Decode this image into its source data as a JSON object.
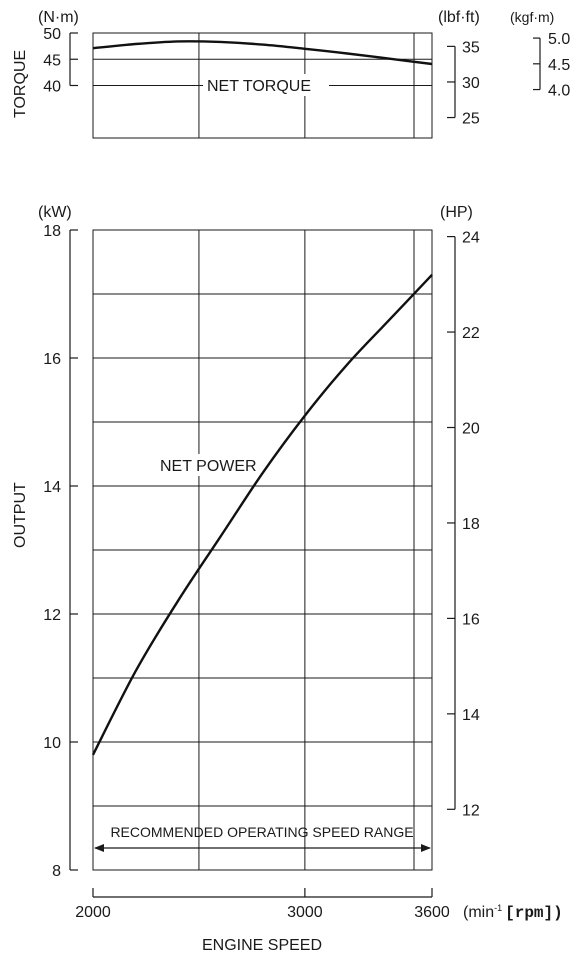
{
  "chart_data": [
    {
      "type": "line",
      "title": "",
      "xlabel": "",
      "ylabel": "TORQUE",
      "y_units": [
        "(N·m)",
        "(lbf·ft)",
        "(kgf·m)"
      ],
      "ylim": [
        40,
        50
      ],
      "y_ticks": [
        50,
        45,
        40
      ],
      "y_ticks_lbf_ft": [
        35,
        30,
        25
      ],
      "y_ticks_kgf_m": [
        "5.0",
        "4.5",
        "4.0"
      ],
      "grid": true,
      "series": [
        {
          "name": "NET TORQUE",
          "x": [
            2000,
            2200,
            2400,
            2600,
            2800,
            3000,
            3200,
            3400,
            3600
          ],
          "y": [
            47.1,
            47.9,
            48.4,
            48.3,
            47.8,
            47.0,
            46.1,
            45.1,
            44.1
          ]
        }
      ]
    },
    {
      "type": "line",
      "title": "",
      "xlabel": "ENGINE SPEED",
      "x_unit_prefix": "(min",
      "x_unit_sup": "-1",
      "x_unit_bracket": "[rpm])",
      "x_ticks": [
        2000,
        3000,
        3600
      ],
      "xlim": [
        2000,
        3600
      ],
      "ylabel": "OUTPUT",
      "y_units": [
        "(kW)",
        "(HP)"
      ],
      "ylim": [
        8,
        18
      ],
      "y_ticks": [
        18,
        16,
        14,
        12,
        10,
        8
      ],
      "y_ticks_hp": [
        24,
        22,
        20,
        18,
        16,
        14,
        12
      ],
      "grid": true,
      "series": [
        {
          "name": "NET POWER",
          "x": [
            2000,
            2200,
            2400,
            2600,
            2800,
            3000,
            3200,
            3400,
            3600
          ],
          "y": [
            9.8,
            11.1,
            12.2,
            13.2,
            14.2,
            15.1,
            15.9,
            16.6,
            17.3
          ]
        }
      ],
      "annotations": [
        "RECOMMENDED OPERATING SPEED RANGE"
      ]
    }
  ]
}
